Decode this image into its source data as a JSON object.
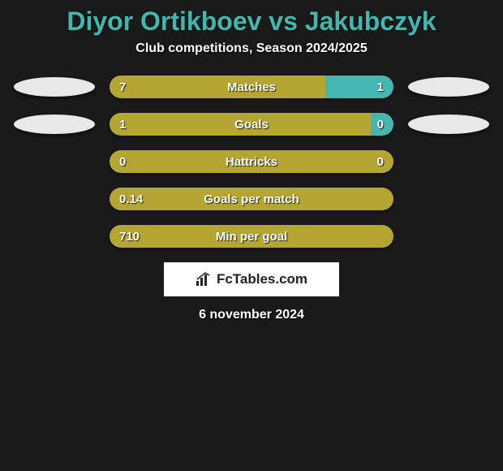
{
  "title": "Diyor Ortikboev vs Jakubczyk",
  "subtitle": "Club competitions, Season 2024/2025",
  "date": "6 november 2024",
  "attribution": "FcTables.com",
  "background_color": "#1a1a1a",
  "colors": {
    "title": "#3fb8af",
    "left_bar": "#b5a633",
    "right_bar": "#46b7b0",
    "text": "#ffffff"
  },
  "flags": {
    "left": {
      "fill": "#e8e8e8"
    },
    "right": {
      "fill": "#e8e8e8"
    }
  },
  "rows": [
    {
      "label": "Matches",
      "left_value": "7",
      "right_value": "1",
      "left_pct": 76,
      "right_pct": 24,
      "show_flags": true
    },
    {
      "label": "Goals",
      "left_value": "1",
      "right_value": "0",
      "left_pct": 92,
      "right_pct": 8,
      "show_flags": true
    },
    {
      "label": "Hattricks",
      "left_value": "0",
      "right_value": "0",
      "left_pct": 100,
      "right_pct": 0,
      "show_flags": false
    },
    {
      "label": "Goals per match",
      "left_value": "0.14",
      "right_value": "",
      "left_pct": 100,
      "right_pct": 0,
      "show_flags": false
    },
    {
      "label": "Min per goal",
      "left_value": "710",
      "right_value": "",
      "left_pct": 100,
      "right_pct": 0,
      "show_flags": false
    }
  ]
}
